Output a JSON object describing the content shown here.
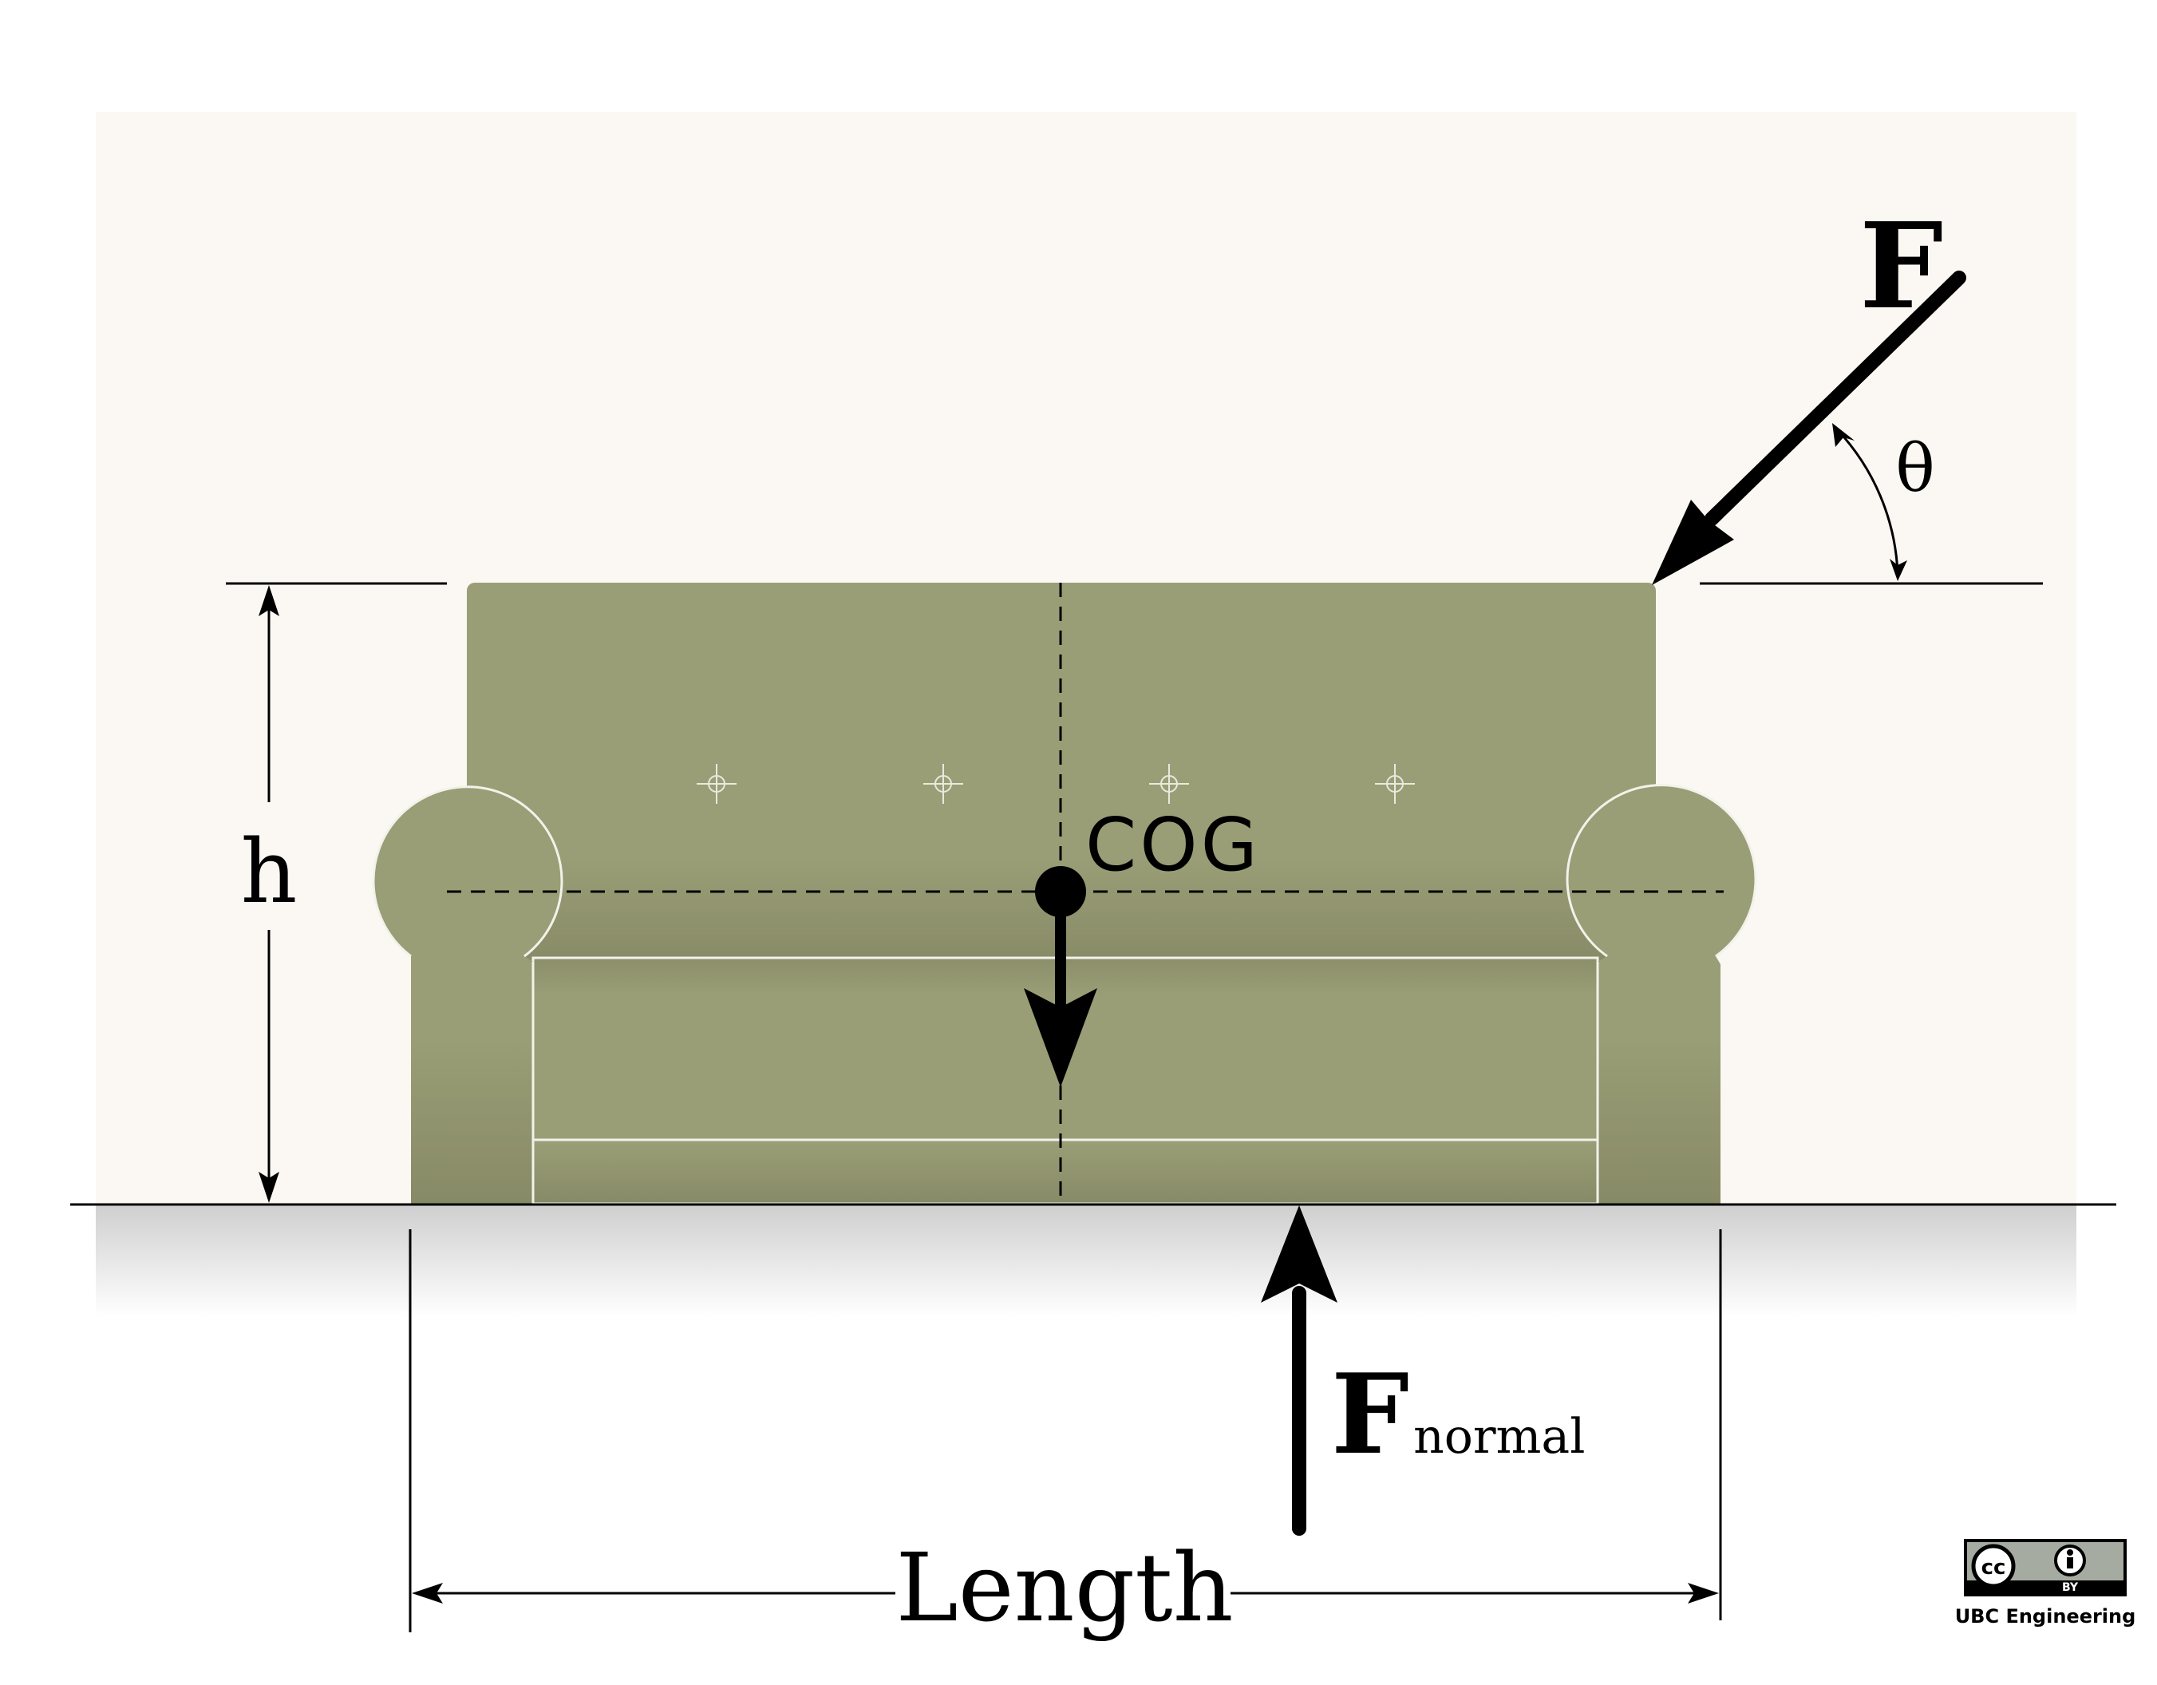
{
  "labels": {
    "force": "F",
    "angle": "θ",
    "cog": "COG",
    "height": "h",
    "normal_force_main": "F",
    "normal_force_sub": "normal",
    "length": "Length"
  },
  "license": {
    "cc": "cc",
    "by": "BY",
    "credit": "UBC Engineering"
  },
  "colors": {
    "wall": "#fbf8f3",
    "sofa": "#9a9e76",
    "sofa_shade": "#878a66",
    "outline": "#f2f2ea",
    "ink": "#000000"
  }
}
